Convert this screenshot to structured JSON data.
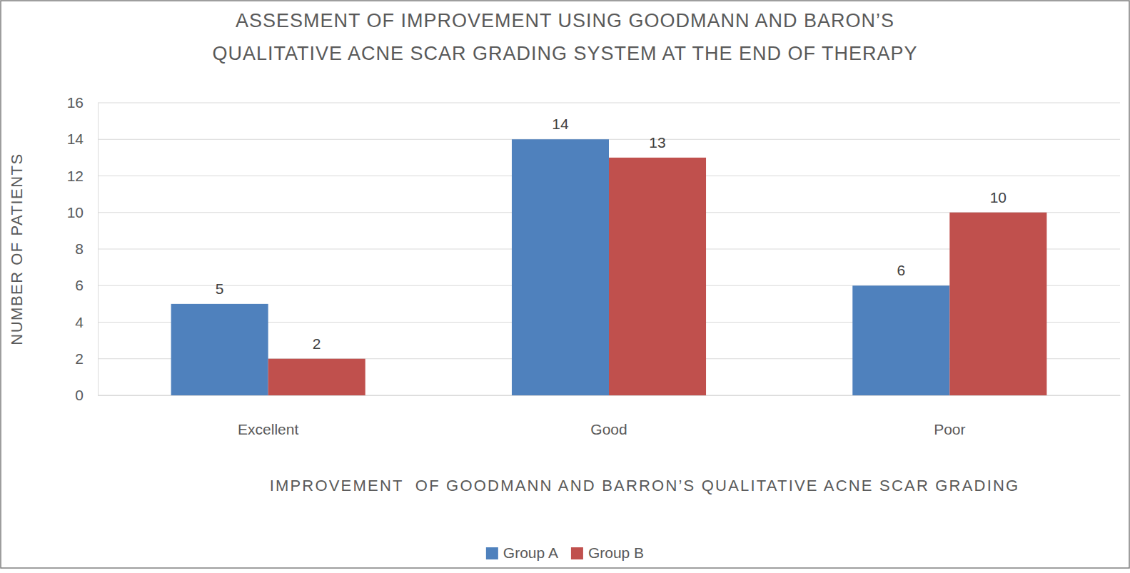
{
  "chart_data": {
    "type": "bar",
    "title": "ASSESMENT OF IMPROVEMENT USING GOODMANN AND BARON’S QUALITATIVE ACNE SCAR GRADING SYSTEM AT THE END OF THERAPY",
    "x_label": "IMPROVEMENT  OF GOODMANN AND BARRON’S QUALITATIVE ACNE SCAR GRADING",
    "y_label": "NUMBER OF PATIENTS",
    "categories": [
      "Excellent",
      "Good",
      "Poor"
    ],
    "series": [
      {
        "name": "Group A",
        "color": "#4f81bd",
        "values": [
          5,
          14,
          6
        ]
      },
      {
        "name": "Group B",
        "color": "#c0504d",
        "values": [
          2,
          13,
          10
        ]
      }
    ],
    "ylim": [
      0,
      16
    ],
    "yticks": [
      0,
      2,
      4,
      6,
      8,
      10,
      12,
      14,
      16
    ],
    "grid": true,
    "data_labels": true,
    "legend": "bottom"
  }
}
